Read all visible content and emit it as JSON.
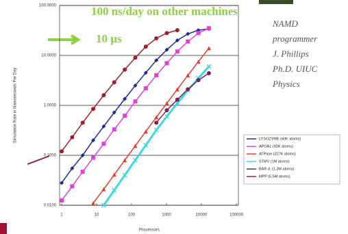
{
  "chart_data": {
    "type": "line",
    "title": "100 ns/day on other machines",
    "annotation": "10 µs",
    "side_text": [
      "NAMD",
      "programmer",
      "J. Phillips",
      "Ph.D. UIUC",
      "Physics"
    ],
    "x_label": "Processors",
    "y_label": "Simulation Rate in Nanoseconds Per Day",
    "log_x": true,
    "log_y": true,
    "grid": true,
    "legend": "lower right",
    "xlim": [
      1,
      100000
    ],
    "ylim": [
      0.01,
      100
    ],
    "xticks": [
      1,
      10,
      100,
      1000,
      10000,
      100000
    ],
    "yticks": [
      {
        "value": 100,
        "label": "100.0000"
      },
      {
        "value": 10,
        "label": "10.0000"
      },
      {
        "value": 1,
        "label": "1.0000"
      },
      {
        "value": 0.1,
        "label": "0.1000"
      },
      {
        "value": 0.01,
        "label": "0.0100"
      }
    ],
    "series": [
      {
        "name": "LYSOZYME (40K atoms)",
        "color": "#1c2a9c",
        "marker": "diamond",
        "x": [
          1,
          2,
          4,
          8,
          16,
          32,
          64,
          128,
          256,
          512,
          1024,
          2048,
          4096,
          8192,
          16384
        ],
        "values": [
          0.028,
          0.055,
          0.1,
          0.2,
          0.38,
          0.72,
          1.35,
          2.5,
          4.5,
          8,
          13,
          20,
          27,
          32,
          34
        ]
      },
      {
        "name": "APOA1 (92K atoms)",
        "color": "#e040e0",
        "marker": "square",
        "x": [
          1,
          2,
          4,
          8,
          16,
          32,
          64,
          128,
          256,
          512,
          1024,
          2048,
          4096,
          8192,
          16384
        ],
        "values": [
          0.0125,
          0.024,
          0.047,
          0.09,
          0.17,
          0.33,
          0.62,
          1.2,
          2.2,
          4,
          7,
          12,
          19,
          28,
          35
        ]
      },
      {
        "name": "ATPase (327K atoms)",
        "color": "#e83a2a",
        "marker": "triangle",
        "x": [
          8,
          16,
          32,
          64,
          128,
          256,
          512,
          1024,
          2048,
          4096,
          8192,
          16384
        ],
        "values": [
          0.011,
          0.021,
          0.041,
          0.08,
          0.155,
          0.3,
          0.58,
          1.1,
          2.1,
          4,
          7.5,
          14
        ]
      },
      {
        "name": "STMV (1M atoms)",
        "color": "#40d8e0",
        "marker": "x",
        "x": [
          16,
          32,
          64,
          128,
          256,
          512,
          1024,
          2048,
          4096,
          8192,
          16384
        ],
        "values": [
          0.01,
          0.02,
          0.04,
          0.08,
          0.16,
          0.32,
          0.6,
          1.1,
          2,
          3.5,
          6
        ]
      },
      {
        "name": "BAR d. (1.3M atoms)",
        "color": "#7a1f5a",
        "marker": "circle",
        "x": [
          512,
          1024,
          2048,
          4096,
          8192,
          16384
        ],
        "values": [
          0.45,
          0.8,
          1.3,
          2.1,
          3.2,
          4.4
        ]
      },
      {
        "name": "MPP (5.5M atoms)",
        "color": "#a01e2a",
        "marker": "circle",
        "x": [
          1,
          2,
          4,
          8,
          16,
          32,
          64,
          128,
          256,
          512,
          1024,
          2048
        ],
        "values": [
          0.12,
          0.23,
          0.45,
          0.85,
          1.6,
          2.9,
          5.2,
          9,
          15,
          22,
          28,
          32
        ]
      }
    ]
  }
}
